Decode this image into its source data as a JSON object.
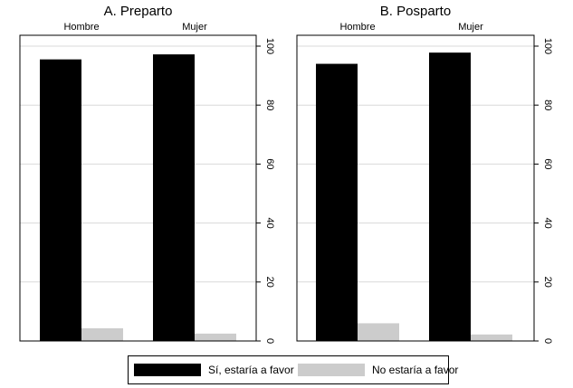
{
  "chart_data": [
    {
      "type": "bar",
      "title": "A. Preparto",
      "categories": [
        "Hombre",
        "Mujer"
      ],
      "series": [
        {
          "name": "Sí, estaría a favor",
          "values": [
            95.5,
            97.2
          ]
        },
        {
          "name": "No estaría a favor",
          "values": [
            4.3,
            2.5
          ]
        }
      ],
      "xlabel": "",
      "ylabel": "",
      "ylim": [
        0,
        100
      ],
      "yticks": [
        0,
        20,
        40,
        60,
        80,
        100
      ],
      "yaxis_side": "right",
      "grid": true
    },
    {
      "type": "bar",
      "title": "B. Posparto",
      "categories": [
        "Hombre",
        "Mujer"
      ],
      "series": [
        {
          "name": "Sí, estaría a favor",
          "values": [
            94.0,
            97.8
          ]
        },
        {
          "name": "No estaría a favor",
          "values": [
            6.0,
            2.2
          ]
        }
      ],
      "xlabel": "",
      "ylabel": "",
      "ylim": [
        0,
        100
      ],
      "yticks": [
        0,
        20,
        40,
        60,
        80,
        100
      ],
      "yaxis_side": "right",
      "grid": true
    }
  ],
  "legend": {
    "placement": "bottom",
    "items": [
      {
        "label": "Sí, estaría a favor",
        "color": "#000000"
      },
      {
        "label": "No estaría a favor",
        "color": "#cccccc"
      }
    ]
  },
  "colors": {
    "series": [
      "#000000",
      "#cccccc"
    ],
    "grid": "#d9d9d9",
    "axis": "#000000"
  }
}
